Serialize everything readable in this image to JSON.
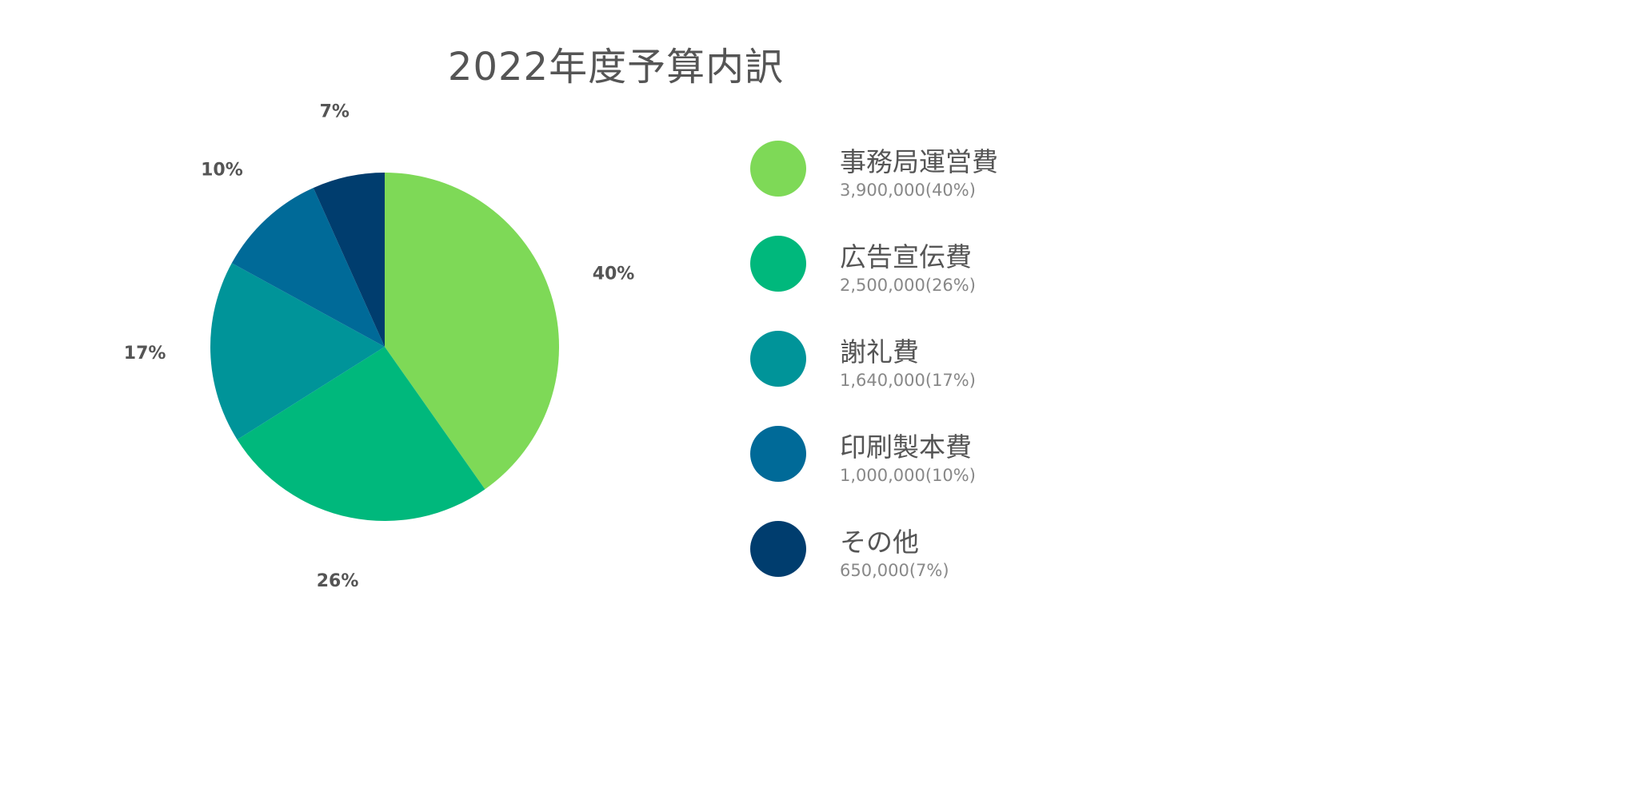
{
  "title": "2022年度予算内訳",
  "chart_data": {
    "type": "pie",
    "title": "2022年度予算内訳",
    "legend_position": "right",
    "slices": [
      {
        "name": "事務局運営費",
        "value": 3900000,
        "value_label": "3,900,000(40%)",
        "percent_label": "40%",
        "color": "#7ed957"
      },
      {
        "name": "広告宣伝費",
        "value": 2500000,
        "value_label": "2,500,000(26%)",
        "percent_label": "26%",
        "color": "#00b87c"
      },
      {
        "name": "謝礼費",
        "value": 1640000,
        "value_label": "1,640,000(17%)",
        "percent_label": "17%",
        "color": "#009499"
      },
      {
        "name": "印刷製本費",
        "value": 1000000,
        "value_label": "1,000,000(10%)",
        "percent_label": "10%",
        "color": "#006a98"
      },
      {
        "name": "その他",
        "value": 650000,
        "value_label": "650,000(7%)",
        "percent_label": "7%",
        "color": "#003d6e"
      }
    ]
  }
}
